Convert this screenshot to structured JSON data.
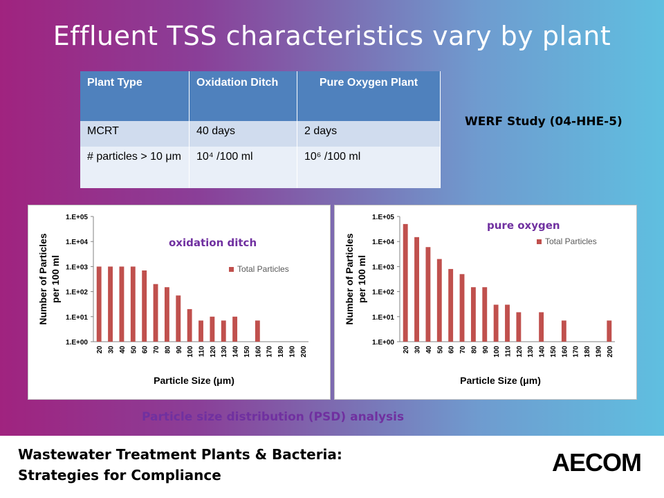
{
  "slide": {
    "title": "Effluent TSS characteristics vary by plant",
    "werf_label": "WERF Study (04-HHE-5)",
    "psd_label": "Particle size distribution (PSD) analysis",
    "footer_line1": "Wastewater Treatment Plants & Bacteria:",
    "footer_line2": "Strategies for Compliance",
    "logo_text": "AECOM"
  },
  "table": {
    "headers": [
      "Plant Type",
      "Oxidation Ditch",
      "Pure Oxygen Plant"
    ],
    "rows": [
      [
        "MCRT",
        "40 days",
        "2 days"
      ],
      [
        "# particles > 10 μm",
        "10⁴ /100 ml",
        "10⁶ /100 ml"
      ]
    ]
  },
  "colors": {
    "bar": "#c0504d",
    "header_blue": "#4f81bd",
    "accent_purple": "#7030a0"
  },
  "chart_data": [
    {
      "type": "bar",
      "title": "oxidation ditch",
      "xlabel": "Particle Size (μm)",
      "ylabel": "Number of Particles per 100 ml",
      "yscale": "log",
      "ylim": [
        1,
        100000
      ],
      "yticks": [
        "1.E+00",
        "1.E+01",
        "1.E+02",
        "1.E+03",
        "1.E+04",
        "1.E+05"
      ],
      "categories": [
        "20",
        "30",
        "40",
        "50",
        "60",
        "70",
        "80",
        "90",
        "100",
        "110",
        "120",
        "130",
        "140",
        "150",
        "160",
        "170",
        "180",
        "190",
        "200"
      ],
      "series": [
        {
          "name": "Total Particles",
          "values": [
            1000,
            1000,
            1000,
            1000,
            700,
            200,
            150,
            70,
            20,
            7,
            10,
            7,
            10,
            0,
            7,
            0,
            0,
            0,
            0
          ]
        }
      ],
      "legend": "right"
    },
    {
      "type": "bar",
      "title": "pure oxygen",
      "xlabel": "Particle Size (μm)",
      "ylabel": "Number of Particles per 100 ml",
      "yscale": "log",
      "ylim": [
        1,
        100000
      ],
      "yticks": [
        "1.E+00",
        "1.E+01",
        "1.E+02",
        "1.E+03",
        "1.E+04",
        "1.E+05"
      ],
      "categories": [
        "20",
        "30",
        "40",
        "50",
        "60",
        "70",
        "80",
        "90",
        "100",
        "110",
        "120",
        "130",
        "140",
        "150",
        "160",
        "170",
        "180",
        "190",
        "200"
      ],
      "series": [
        {
          "name": "Total Particles",
          "values": [
            50000,
            15000,
            6000,
            2000,
            800,
            500,
            150,
            150,
            30,
            30,
            15,
            0,
            15,
            0,
            7,
            0,
            0,
            0,
            7
          ]
        }
      ],
      "legend": "top-right"
    }
  ]
}
